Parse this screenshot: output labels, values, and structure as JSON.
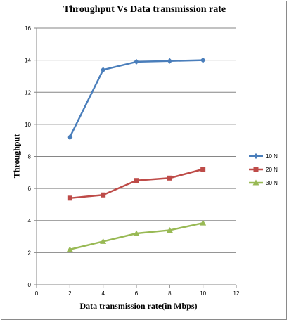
{
  "chart_data": {
    "type": "line",
    "title": "Throughput Vs Data transmission rate",
    "xlabel": "Data transmission rate(in Mbps)",
    "ylabel": "Throughput",
    "xlim": [
      0,
      12
    ],
    "ylim": [
      0,
      16
    ],
    "x_ticks": [
      0,
      2,
      4,
      6,
      8,
      10,
      12
    ],
    "y_ticks": [
      0,
      2,
      4,
      6,
      8,
      10,
      12,
      14,
      16
    ],
    "grid": "horizontal",
    "legend_position": "right",
    "x": [
      2,
      4,
      6,
      8,
      10
    ],
    "series": [
      {
        "name": "10 N",
        "values": [
          9.2,
          13.4,
          13.9,
          13.95,
          14.0
        ],
        "color": "#4a7ebb",
        "marker": "diamond"
      },
      {
        "name": "20 N",
        "values": [
          5.4,
          5.6,
          6.5,
          6.65,
          7.2
        ],
        "color": "#be4b48",
        "marker": "square"
      },
      {
        "name": "30 N",
        "values": [
          2.2,
          2.7,
          3.2,
          3.4,
          3.85
        ],
        "color": "#98b954",
        "marker": "triangle"
      }
    ]
  }
}
